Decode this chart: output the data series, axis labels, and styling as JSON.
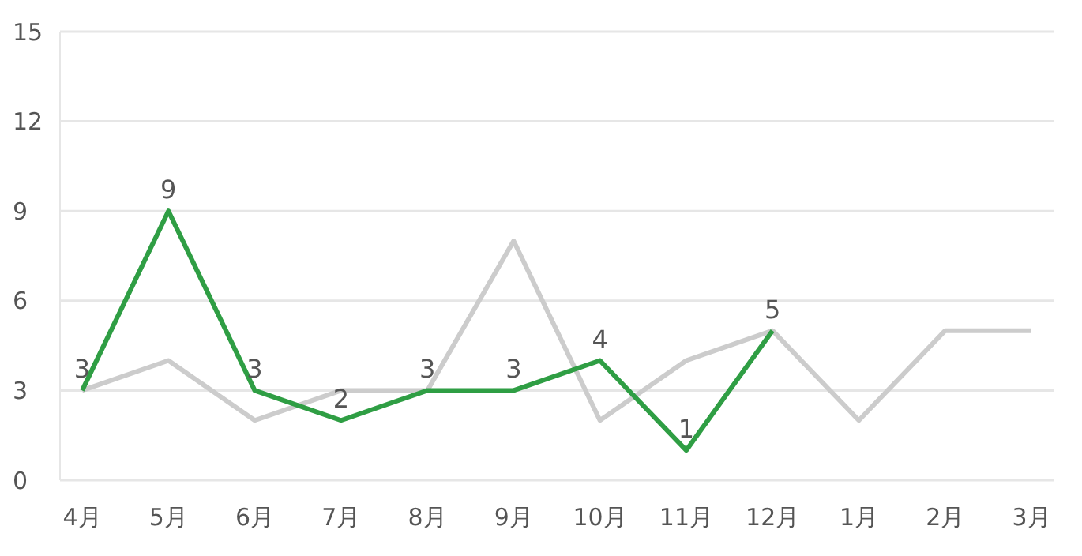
{
  "chart_data": {
    "type": "line",
    "categories": [
      "4月",
      "5月",
      "6月",
      "7月",
      "8月",
      "9月",
      "10月",
      "11月",
      "12月",
      "1月",
      "2月",
      "3月"
    ],
    "series": [
      {
        "color": "#cccccc",
        "values": [
          3,
          4,
          2,
          3,
          3,
          8,
          2,
          4,
          5,
          2,
          5,
          5
        ]
      },
      {
        "color": "#2f9e44",
        "values": [
          3,
          9,
          3,
          2,
          3,
          3,
          4,
          1,
          5,
          null,
          null,
          null
        ],
        "value_labels": [
          "3",
          "9",
          "3",
          "2",
          "3",
          "3",
          "4",
          "1",
          "5",
          null,
          null,
          null
        ]
      }
    ],
    "ylim": [
      0,
      15
    ],
    "yticks": [
      0,
      3,
      6,
      9,
      12,
      15
    ],
    "grid": "y",
    "marker": "none",
    "line_style": "solid"
  }
}
